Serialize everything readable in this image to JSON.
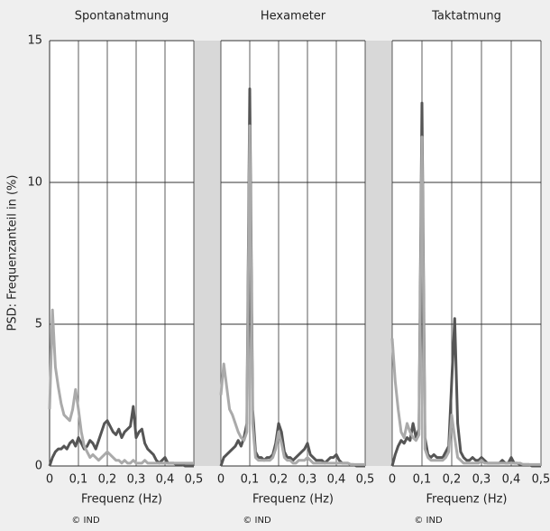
{
  "chart_data": [
    {
      "type": "line",
      "title": "Spontanatmung",
      "x_label": "Frequenz (Hz)",
      "credit": "© IND",
      "y_label": "PSD: Frequenzanteil in (%)",
      "xlim": [
        0,
        0.5
      ],
      "xticks": [
        0,
        {
          "value": 0.1,
          "label": "0,1"
        },
        {
          "value": 0.2,
          "label": "0,2"
        },
        {
          "value": 0.3,
          "label": "0,3"
        },
        {
          "value": 0.4,
          "label": "0,4"
        },
        {
          "value": 0.5,
          "label": "0,5"
        }
      ],
      "ylim": [
        0,
        15
      ],
      "yticks": [
        0,
        5,
        10,
        15
      ],
      "x": [
        0,
        0.01,
        0.02,
        0.03,
        0.04,
        0.05,
        0.06,
        0.07,
        0.08,
        0.09,
        0.1,
        0.11,
        0.12,
        0.13,
        0.14,
        0.15,
        0.16,
        0.17,
        0.18,
        0.19,
        0.2,
        0.21,
        0.22,
        0.23,
        0.24,
        0.25,
        0.26,
        0.27,
        0.28,
        0.29,
        0.3,
        0.31,
        0.32,
        0.33,
        0.34,
        0.35,
        0.36,
        0.37,
        0.38,
        0.39,
        0.4,
        0.41,
        0.42,
        0.43,
        0.44,
        0.45,
        0.46,
        0.47,
        0.48,
        0.49,
        0.5
      ],
      "series": [
        {
          "color": "#555555",
          "values": [
            0,
            0.3,
            0.5,
            0.6,
            0.6,
            0.7,
            0.6,
            0.8,
            0.9,
            0.7,
            1.0,
            0.8,
            0.6,
            0.7,
            0.9,
            0.8,
            0.6,
            0.9,
            1.2,
            1.5,
            1.6,
            1.4,
            1.2,
            1.1,
            1.3,
            1.0,
            1.2,
            1.3,
            1.4,
            2.1,
            1.0,
            1.2,
            1.3,
            0.8,
            0.6,
            0.5,
            0.4,
            0.2,
            0.1,
            0.2,
            0.3,
            0.1,
            0.1,
            0.1,
            0.05,
            0.05,
            0.05,
            0,
            0,
            0,
            0
          ]
        },
        {
          "color": "#aaaaaa",
          "values": [
            2.0,
            5.5,
            3.5,
            2.8,
            2.2,
            1.8,
            1.7,
            1.6,
            2.0,
            2.7,
            2.0,
            1.2,
            0.7,
            0.5,
            0.3,
            0.4,
            0.3,
            0.2,
            0.3,
            0.4,
            0.5,
            0.4,
            0.3,
            0.2,
            0.2,
            0.1,
            0.2,
            0.1,
            0.1,
            0.2,
            0.1,
            0.1,
            0.1,
            0.2,
            0.1,
            0.1,
            0.1,
            0.1,
            0.1,
            0.1,
            0.1,
            0.1,
            0.1,
            0.1,
            0.1,
            0.1,
            0.1,
            0.1,
            0.1,
            0.1,
            0.1
          ]
        }
      ]
    },
    {
      "type": "line",
      "title": "Hexameter",
      "x_label": "Frequenz (Hz)",
      "credit": "© IND",
      "xlim": [
        0,
        0.5
      ],
      "xticks": [
        0,
        {
          "value": 0.1,
          "label": "0,1"
        },
        {
          "value": 0.2,
          "label": "0,2"
        },
        {
          "value": 0.3,
          "label": "0,3"
        },
        {
          "value": 0.4,
          "label": "0,4"
        },
        {
          "value": 0.5,
          "label": "0,5"
        }
      ],
      "ylim": [
        0,
        15
      ],
      "yticks": [
        0,
        5,
        10,
        15
      ],
      "x": [
        0,
        0.01,
        0.02,
        0.03,
        0.04,
        0.05,
        0.06,
        0.07,
        0.08,
        0.09,
        0.1,
        0.11,
        0.12,
        0.13,
        0.14,
        0.15,
        0.16,
        0.17,
        0.18,
        0.19,
        0.2,
        0.21,
        0.22,
        0.23,
        0.24,
        0.25,
        0.26,
        0.27,
        0.28,
        0.29,
        0.3,
        0.31,
        0.32,
        0.33,
        0.34,
        0.35,
        0.36,
        0.37,
        0.38,
        0.39,
        0.4,
        0.41,
        0.42,
        0.43,
        0.44,
        0.45,
        0.46,
        0.47,
        0.48,
        0.49,
        0.5
      ],
      "series": [
        {
          "color": "#555555",
          "values": [
            0,
            0.3,
            0.4,
            0.5,
            0.6,
            0.7,
            0.9,
            0.7,
            1.0,
            1.5,
            13.3,
            2.0,
            0.5,
            0.3,
            0.3,
            0.2,
            0.3,
            0.3,
            0.4,
            0.8,
            1.5,
            1.2,
            0.5,
            0.3,
            0.3,
            0.2,
            0.3,
            0.4,
            0.5,
            0.6,
            0.8,
            0.4,
            0.3,
            0.2,
            0.2,
            0.2,
            0.1,
            0.2,
            0.3,
            0.3,
            0.4,
            0.2,
            0.1,
            0.1,
            0.1,
            0.05,
            0.05,
            0,
            0,
            0,
            0
          ]
        },
        {
          "color": "#aaaaaa",
          "values": [
            2.5,
            3.6,
            2.8,
            2.0,
            1.8,
            1.5,
            1.2,
            1.0,
            0.9,
            1.2,
            12.0,
            1.5,
            0.3,
            0.2,
            0.2,
            0.2,
            0.2,
            0.2,
            0.3,
            0.6,
            1.2,
            0.8,
            0.3,
            0.2,
            0.2,
            0.1,
            0.1,
            0.2,
            0.2,
            0.2,
            0.3,
            0.2,
            0.1,
            0.1,
            0.1,
            0.1,
            0.1,
            0.1,
            0.1,
            0.1,
            0.1,
            0.1,
            0.1,
            0.1,
            0.1,
            0.05,
            0.05,
            0.05,
            0.05,
            0.05,
            0.05
          ]
        }
      ]
    },
    {
      "type": "line",
      "title": "Taktatmung",
      "x_label": "Frequenz (Hz)",
      "credit": "© IND",
      "xlim": [
        0,
        0.5
      ],
      "xticks": [
        0,
        {
          "value": 0.1,
          "label": "0,1"
        },
        {
          "value": 0.2,
          "label": "0,2"
        },
        {
          "value": 0.3,
          "label": "0,3"
        },
        {
          "value": 0.4,
          "label": "0,4"
        },
        {
          "value": 0.5,
          "label": "0,5"
        }
      ],
      "ylim": [
        0,
        15
      ],
      "yticks": [
        0,
        5,
        10,
        15
      ],
      "x": [
        0,
        0.01,
        0.02,
        0.03,
        0.04,
        0.05,
        0.06,
        0.07,
        0.08,
        0.09,
        0.1,
        0.11,
        0.12,
        0.13,
        0.14,
        0.15,
        0.16,
        0.17,
        0.18,
        0.19,
        0.2,
        0.21,
        0.22,
        0.23,
        0.24,
        0.25,
        0.26,
        0.27,
        0.28,
        0.29,
        0.3,
        0.31,
        0.32,
        0.33,
        0.34,
        0.35,
        0.36,
        0.37,
        0.38,
        0.39,
        0.4,
        0.41,
        0.42,
        0.43,
        0.44,
        0.45,
        0.46,
        0.47,
        0.48,
        0.49,
        0.5
      ],
      "series": [
        {
          "color": "#555555",
          "values": [
            0,
            0.4,
            0.7,
            0.9,
            0.8,
            1.0,
            0.9,
            1.5,
            1.0,
            1.3,
            12.8,
            1.0,
            0.4,
            0.3,
            0.4,
            0.3,
            0.3,
            0.3,
            0.5,
            0.7,
            3.0,
            5.2,
            1.5,
            0.5,
            0.3,
            0.2,
            0.2,
            0.3,
            0.2,
            0.2,
            0.3,
            0.2,
            0.1,
            0.1,
            0.1,
            0.1,
            0.1,
            0.2,
            0.1,
            0.1,
            0.3,
            0.1,
            0.1,
            0.05,
            0.05,
            0.05,
            0.05,
            0,
            0,
            0,
            0
          ]
        },
        {
          "color": "#aaaaaa",
          "values": [
            4.5,
            3.0,
            2.0,
            1.2,
            1.0,
            1.5,
            1.2,
            1.0,
            0.9,
            1.1,
            11.6,
            0.6,
            0.3,
            0.2,
            0.2,
            0.2,
            0.2,
            0.2,
            0.3,
            0.5,
            1.8,
            1.0,
            0.3,
            0.2,
            0.1,
            0.1,
            0.1,
            0.1,
            0.1,
            0.1,
            0.2,
            0.1,
            0.1,
            0.1,
            0.1,
            0.1,
            0.1,
            0.1,
            0.1,
            0.1,
            0.1,
            0.1,
            0.1,
            0.1,
            0.05,
            0.05,
            0.05,
            0.05,
            0.05,
            0.05,
            0.05
          ]
        }
      ]
    }
  ]
}
